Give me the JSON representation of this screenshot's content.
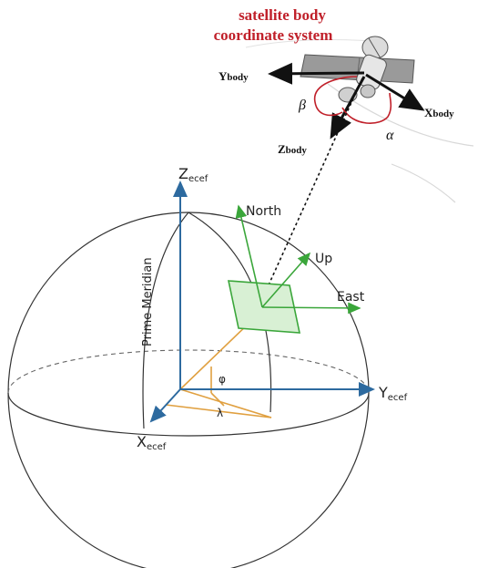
{
  "title": {
    "line1": "satellite body",
    "line2": "coordinate system"
  },
  "body_axes": {
    "x": {
      "main": "X",
      "sub": "body"
    },
    "y": {
      "main": "Y",
      "sub": "body"
    },
    "z": {
      "main": "Z",
      "sub": "body"
    },
    "beta": "β",
    "alpha": "α"
  },
  "ecef_axes": {
    "x": {
      "main": "X",
      "sub": "ecef"
    },
    "y": {
      "main": "Y",
      "sub": "ecef"
    },
    "z": {
      "main": "Z",
      "sub": "ecef"
    },
    "prime_meridian": "Prime Meridian",
    "phi": "φ",
    "lambda": "λ"
  },
  "enu_axes": {
    "north": "North",
    "east": "East",
    "up": "Up"
  },
  "colors": {
    "title_red": "#c0202a",
    "angle_red": "#c0202a",
    "ecef_blue": "#2d6a9f",
    "enu_green": "#3aa63a",
    "angle_orange": "#e0a040",
    "sphere_line": "#333333",
    "satellite_gray": "#888888"
  }
}
